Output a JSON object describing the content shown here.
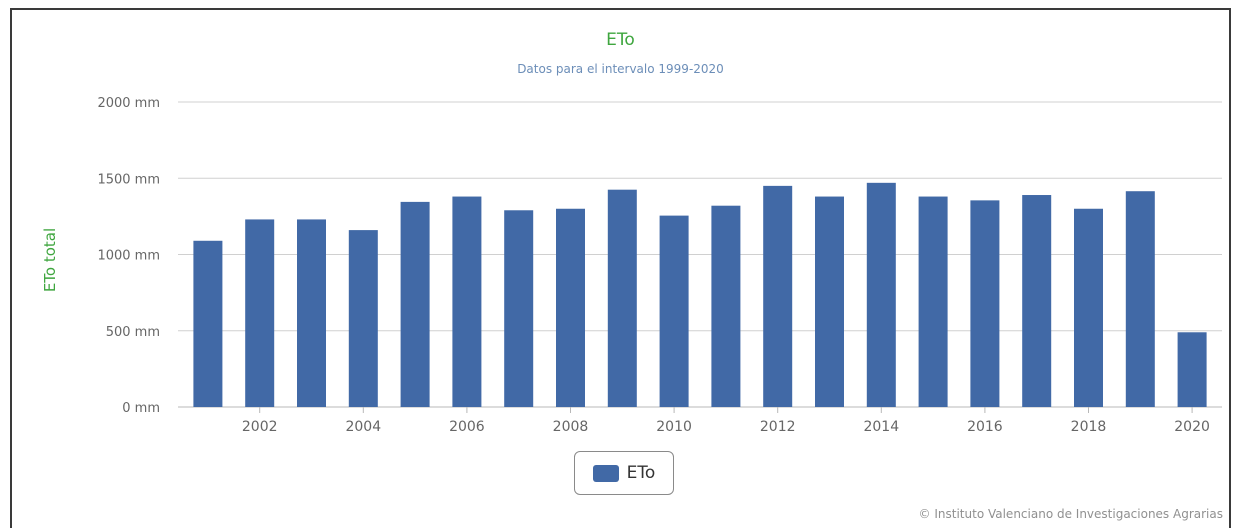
{
  "colors": {
    "bar": "#4169a6",
    "title": "#3fa63f",
    "subtitle": "#6c8eb8",
    "grid": "#d0d0d0",
    "axis_text": "#666666"
  },
  "chart_data": {
    "type": "bar",
    "title": "ETo",
    "subtitle": "Datos para el intervalo 1999-2020",
    "ylabel": "ETo total",
    "xlabel": "",
    "ylim": [
      0,
      2000
    ],
    "yticks": [
      0,
      500,
      1000,
      1500,
      2000
    ],
    "ytick_labels": [
      "0 mm",
      "500 mm",
      "1000 mm",
      "1500 mm",
      "2000 mm"
    ],
    "xtick_labels": [
      "2002",
      "2004",
      "2006",
      "2008",
      "2010",
      "2012",
      "2014",
      "2016",
      "2018",
      "2020"
    ],
    "categories": [
      "2001",
      "2002",
      "2003",
      "2004",
      "2005",
      "2006",
      "2007",
      "2008",
      "2009",
      "2010",
      "2011",
      "2012",
      "2013",
      "2014",
      "2015",
      "2016",
      "2017",
      "2018",
      "2019",
      "2020"
    ],
    "series": [
      {
        "name": "ETo",
        "values": [
          1090,
          1230,
          1230,
          1160,
          1345,
          1380,
          1290,
          1300,
          1425,
          1255,
          1320,
          1450,
          1380,
          1470,
          1380,
          1355,
          1390,
          1300,
          1415,
          490
        ]
      }
    ],
    "grid": true,
    "legend_position": "bottom-center"
  },
  "credit": "© Instituto Valenciano de Investigaciones Agrarias"
}
